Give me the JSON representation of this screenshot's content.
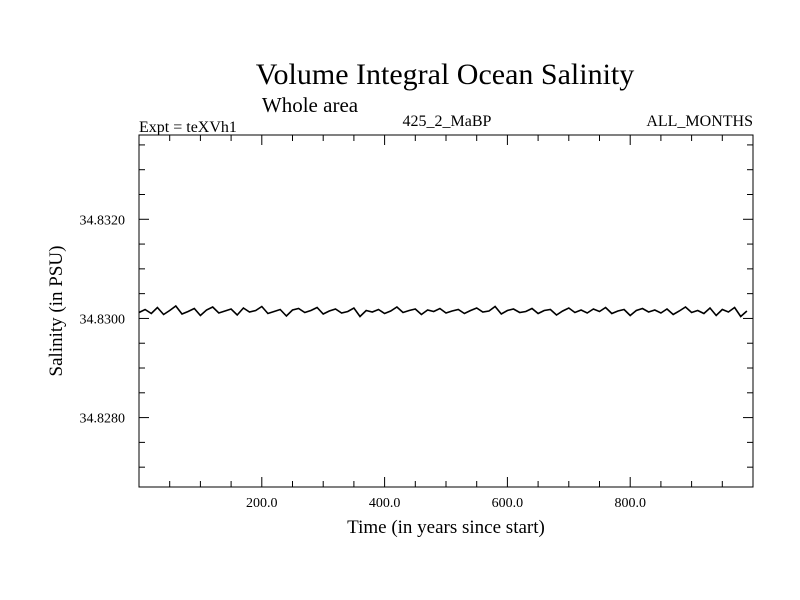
{
  "chart_data": {
    "type": "line",
    "title": "Volume Integral Ocean Salinity",
    "subtitle": "Whole area",
    "header_left": "Expt = teXVh1",
    "header_center": "425_2_MaBP",
    "header_right": "ALL_MONTHS",
    "xlabel": "Time (in years since start)",
    "ylabel": "Salinity (in PSU)",
    "xlim": [
      0,
      1000
    ],
    "ylim": [
      34.8266,
      34.8337
    ],
    "x_ticks": [
      200,
      400,
      600,
      800
    ],
    "x_tick_labels": [
      "200.0",
      "400.0",
      "600.0",
      "800.0"
    ],
    "y_ticks": [
      34.828,
      34.83,
      34.832
    ],
    "y_tick_labels": [
      "34.8280",
      "34.8300",
      "34.8320"
    ],
    "series": [
      {
        "name": "Salinity",
        "x_start": 0,
        "x_step": 10,
        "mean": 34.83015,
        "values": [
          34.83012,
          34.83018,
          34.8301,
          34.83022,
          34.83008,
          34.83016,
          34.83025,
          34.83009,
          34.83014,
          34.8302,
          34.83006,
          34.83017,
          34.83023,
          34.83011,
          34.83015,
          34.83019,
          34.83007,
          34.83021,
          34.83013,
          34.83016,
          34.83024,
          34.8301,
          34.83014,
          34.83018,
          34.83005,
          34.83017,
          34.8302,
          34.83012,
          34.83016,
          34.83022,
          34.83009,
          34.83015,
          34.83019,
          34.83011,
          34.83014,
          34.83021,
          34.83004,
          34.83016,
          34.83013,
          34.83018,
          34.8301,
          34.83015,
          34.83023,
          34.83012,
          34.83016,
          34.83019,
          34.83008,
          34.83017,
          34.83014,
          34.8302,
          34.83011,
          34.83015,
          34.83018,
          34.8301,
          34.83016,
          34.83021,
          34.83013,
          34.83015,
          34.83024,
          34.83009,
          34.83016,
          34.83019,
          34.83012,
          34.83014,
          34.8302,
          34.8301,
          34.83016,
          34.83018,
          34.83007,
          34.83015,
          34.83021,
          34.83012,
          34.83017,
          34.83011,
          34.83019,
          34.83014,
          34.83022,
          34.8301,
          34.83015,
          34.83018,
          34.83006,
          34.83016,
          34.8302,
          34.83013,
          34.83017,
          34.83011,
          34.83019,
          34.83008,
          34.83015,
          34.83023,
          34.83012,
          34.83016,
          34.8301,
          34.83021,
          34.83006,
          34.83018,
          34.83013,
          34.83022,
          34.83004,
          34.83015
        ]
      }
    ]
  }
}
